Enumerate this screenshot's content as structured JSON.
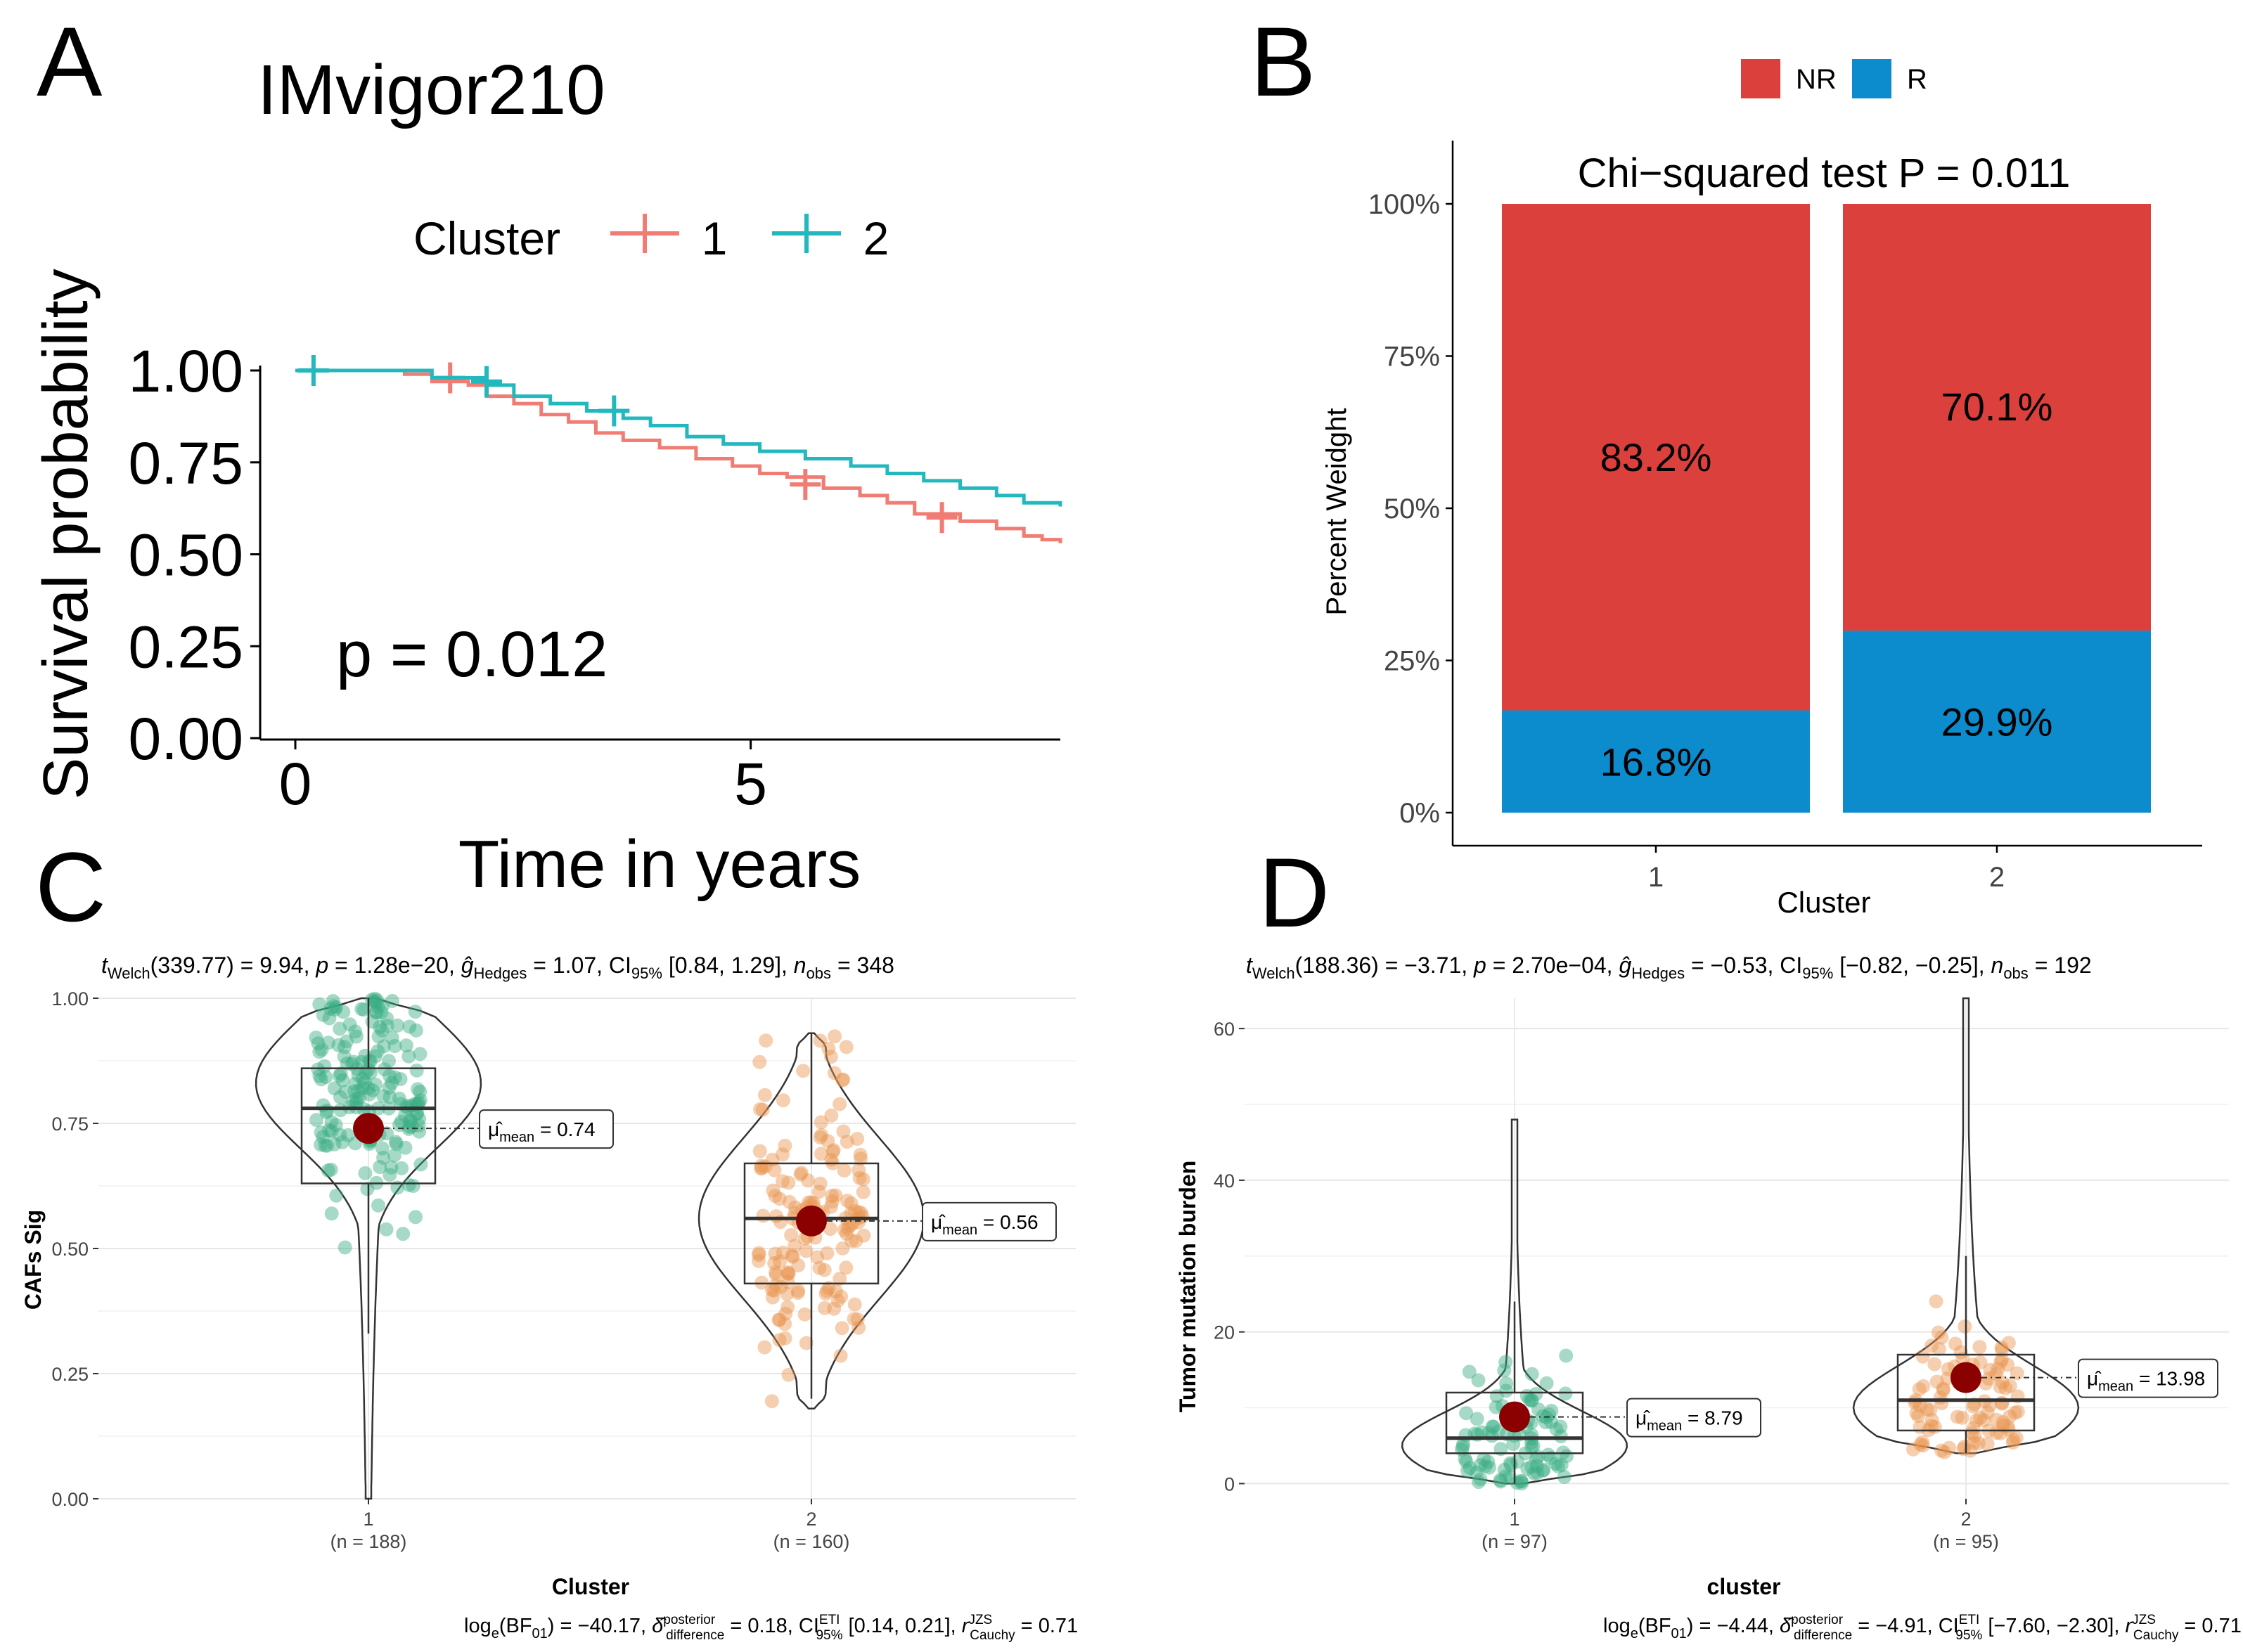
{
  "chart_data": [
    {
      "panel": "A",
      "type": "line",
      "title": "IMvigor210",
      "xlabel": "Time in years",
      "ylabel": "Survival probability",
      "xlim": [
        0,
        8.4
      ],
      "ylim": [
        0,
        1
      ],
      "x_ticks": [
        0,
        5
      ],
      "y_ticks": [
        0,
        0.25,
        0.5,
        0.75,
        1.0
      ],
      "y_tick_labels": [
        "0.00",
        "0.25",
        "0.50",
        "0.75",
        "1.00"
      ],
      "legend_title": "Cluster",
      "legend_position": "top",
      "annotation": "p = 0.012",
      "series": [
        {
          "name": "1",
          "color": "#f07c73",
          "steps": [
            [
              0,
              1.0
            ],
            [
              1.2,
              0.99
            ],
            [
              1.5,
              0.97
            ],
            [
              1.9,
              0.96
            ],
            [
              2.1,
              0.93
            ],
            [
              2.4,
              0.91
            ],
            [
              2.7,
              0.88
            ],
            [
              3.0,
              0.86
            ],
            [
              3.3,
              0.83
            ],
            [
              3.6,
              0.81
            ],
            [
              4.0,
              0.79
            ],
            [
              4.4,
              0.76
            ],
            [
              4.8,
              0.74
            ],
            [
              5.1,
              0.72
            ],
            [
              5.4,
              0.71
            ],
            [
              5.8,
              0.68
            ],
            [
              6.2,
              0.66
            ],
            [
              6.5,
              0.64
            ],
            [
              6.8,
              0.61
            ],
            [
              7.3,
              0.59
            ],
            [
              7.7,
              0.57
            ],
            [
              8.0,
              0.55
            ],
            [
              8.2,
              0.54
            ],
            [
              8.4,
              0.53
            ]
          ],
          "censors": [
            [
              1.7,
              0.98
            ],
            [
              5.6,
              0.69
            ],
            [
              7.1,
              0.6
            ]
          ]
        },
        {
          "name": "2",
          "color": "#23b8be",
          "steps": [
            [
              0,
              1.0
            ],
            [
              1.4,
              1.0
            ],
            [
              1.5,
              0.98
            ],
            [
              2.1,
              0.96
            ],
            [
              2.4,
              0.93
            ],
            [
              2.8,
              0.91
            ],
            [
              3.2,
              0.89
            ],
            [
              3.6,
              0.87
            ],
            [
              3.9,
              0.85
            ],
            [
              4.3,
              0.82
            ],
            [
              4.7,
              0.8
            ],
            [
              5.1,
              0.78
            ],
            [
              5.6,
              0.76
            ],
            [
              6.1,
              0.74
            ],
            [
              6.5,
              0.72
            ],
            [
              6.9,
              0.7
            ],
            [
              7.3,
              0.68
            ],
            [
              7.7,
              0.66
            ],
            [
              8.0,
              0.64
            ],
            [
              8.4,
              0.63
            ]
          ],
          "censors": [
            [
              0.2,
              1.0
            ],
            [
              2.1,
              0.97
            ],
            [
              3.5,
              0.89
            ]
          ]
        }
      ]
    },
    {
      "panel": "B",
      "type": "bar",
      "stacked": true,
      "title": "Chi−squared test P = 0.011",
      "xlabel": "Cluster",
      "ylabel": "Percent Weidght",
      "categories": [
        "1",
        "2"
      ],
      "y_tick_labels": [
        "0%",
        "25%",
        "50%",
        "75%",
        "100%"
      ],
      "ylim": [
        0,
        100
      ],
      "legend_position": "top",
      "series": [
        {
          "name": "R",
          "color": "#0c8ccd",
          "values": [
            16.8,
            29.9
          ],
          "labels": [
            "16.8%",
            "29.9%"
          ]
        },
        {
          "name": "NR",
          "color": "#db403c",
          "values": [
            83.2,
            70.1
          ],
          "labels": [
            "83.2%",
            "70.1%"
          ]
        }
      ]
    },
    {
      "panel": "C",
      "type": "scatter",
      "subtype": "violin-box",
      "subtitle": "t_Welch(339.77) = 9.94, p = 1.28e−20, ĝ_Hedges = 1.07, CI95% [0.84, 1.29], n_obs = 348",
      "subtitle_parts": [
        "t",
        "Welch",
        "(339.77) = 9.94, ",
        "p",
        " = 1.28e−20, ",
        "ĝ",
        "Hedges",
        " = 1.07, CI",
        "95%",
        " [0.84, 1.29], ",
        "n",
        "obs",
        " = 348"
      ],
      "caption": "log_e(BF01) = −40.17, δ̂_difference^posterior = 0.18, CI95%^ETI [0.14, 0.21], r_Cauchy^JZS = 0.71",
      "caption_parts": [
        "log",
        "e",
        "(BF",
        "01",
        ") = −40.17, ",
        "δ̂",
        "posterior",
        "difference",
        " = 0.18, CI",
        "ETI",
        "95%",
        " [0.14, 0.21], ",
        "r",
        "JZS",
        "Cauchy",
        " = 0.71"
      ],
      "xlabel": "Cluster",
      "ylabel": "CAFs Sig",
      "ylim": [
        0,
        1
      ],
      "y_ticks": [
        0,
        0.25,
        0.5,
        0.75,
        1.0
      ],
      "y_tick_labels": [
        "0.00",
        "0.25",
        "0.50",
        "0.75",
        "1.00"
      ],
      "groups": [
        {
          "label": "1",
          "n_label": "(n = 188)",
          "n": 188,
          "mean": 0.74,
          "mean_label": "= 0.74",
          "median": 0.78,
          "q1": 0.63,
          "q3": 0.86,
          "whisker": [
            0.33,
            1.0
          ],
          "range": [
            0.0,
            1.0
          ],
          "mode": 0.83,
          "spread": 0.13,
          "color": "#3aae83"
        },
        {
          "label": "2",
          "n_label": "(n = 160)",
          "n": 160,
          "mean": 0.555,
          "mean_label": "= 0.56",
          "median": 0.56,
          "q1": 0.43,
          "q3": 0.67,
          "whisker": [
            0.2,
            0.93
          ],
          "range": [
            0.18,
            0.93
          ],
          "mode": 0.56,
          "spread": 0.16,
          "color": "#e8954f"
        }
      ],
      "mean_symbol": "μ̂",
      "mean_subscript": "mean"
    },
    {
      "panel": "D",
      "type": "scatter",
      "subtype": "violin-box",
      "subtitle": "t_Welch(188.36) = −3.71, p = 2.70e−04, ĝ_Hedges = −0.53, CI95% [−0.82, −0.25], n_obs = 192",
      "subtitle_parts": [
        "t",
        "Welch",
        "(188.36) = −3.71, ",
        "p",
        " = 2.70e−04, ",
        "ĝ",
        "Hedges",
        " = −0.53, CI",
        "95%",
        " [−0.82, −0.25], ",
        "n",
        "obs",
        " = 192"
      ],
      "caption": "log_e(BF01) = −4.44, δ̂_difference^posterior = −4.91, CI95%^ETI [−7.60, −2.30], r_Cauchy^JZS = 0.71",
      "caption_parts": [
        "log",
        "e",
        "(BF",
        "01",
        ") = −4.44, ",
        "δ̂",
        "posterior",
        "difference",
        " = −4.91, CI",
        "ETI",
        "95%",
        " [−7.60, −2.30], ",
        "r",
        "JZS",
        "Cauchy",
        " = 0.71"
      ],
      "xlabel": "cluster",
      "ylabel": "Tumor mutation burden",
      "ylim": [
        -2,
        64
      ],
      "y_ticks": [
        0,
        20,
        40,
        60
      ],
      "y_tick_labels": [
        "0",
        "20",
        "40",
        "60"
      ],
      "groups": [
        {
          "label": "1",
          "n_label": "(n = 97)",
          "n": 97,
          "mean": 8.79,
          "mean_label": "= 8.79",
          "median": 6,
          "q1": 4,
          "q3": 12,
          "whisker": [
            0,
            24
          ],
          "range": [
            0,
            48
          ],
          "mode": 5,
          "spread": 4.5,
          "color": "#3aae83"
        },
        {
          "label": "2",
          "n_label": "(n = 95)",
          "n": 95,
          "mean": 13.98,
          "mean_label": "= 13.98",
          "median": 11,
          "q1": 7,
          "q3": 17,
          "whisker": [
            4,
            30
          ],
          "range": [
            4,
            64
          ],
          "mode": 10,
          "spread": 5.5,
          "color": "#e8954f"
        }
      ],
      "mean_symbol": "μ̂",
      "mean_subscript": "mean"
    }
  ],
  "panel_labels": [
    "A",
    "B",
    "C",
    "D"
  ]
}
